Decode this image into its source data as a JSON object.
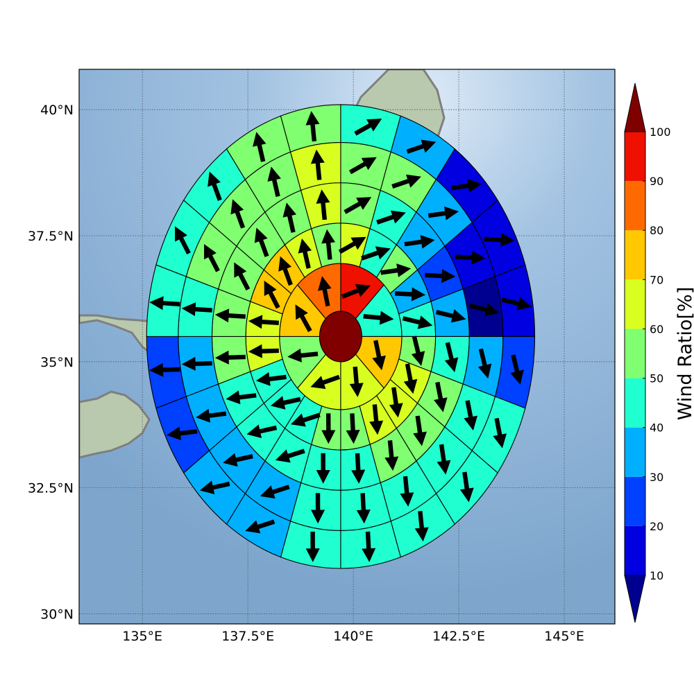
{
  "map": {
    "lat_ticks": [
      {
        "label": "40°N",
        "value": 40
      },
      {
        "label": "37.5°N",
        "value": 37.5
      },
      {
        "label": "35°N",
        "value": 35
      },
      {
        "label": "32.5°N",
        "value": 32.5
      },
      {
        "label": "30°N",
        "value": 30
      }
    ],
    "lon_ticks": [
      {
        "label": "135°E",
        "value": 135
      },
      {
        "label": "137.5°E",
        "value": 137.5
      },
      {
        "label": "140°E",
        "value": 140
      },
      {
        "label": "142.5°E",
        "value": 142.5
      },
      {
        "label": "145°E",
        "value": 145
      }
    ],
    "extent": {
      "lon": [
        133.5,
        146.2
      ],
      "lat": [
        29.8,
        40.8
      ]
    },
    "sea_color": "#8fb3d6",
    "land_color": "#b8c9ad",
    "coast_color": "#7f7f7f",
    "grid": true
  },
  "chart_data": {
    "type": "polar_sector_map",
    "center": {
      "lon": 139.7,
      "lat": 35.5
    },
    "ring_radii_deg": [
      0.5,
      1.45,
      2.25,
      3.05,
      3.85,
      4.6
    ],
    "center_value": 100,
    "rings": [
      {
        "values": [
          95,
          42,
          75,
          62,
          62,
          55,
          70,
          82
        ]
      },
      {
        "values": [
          62,
          45,
          55,
          35,
          45,
          55,
          65,
          65,
          62,
          58,
          55,
          45,
          48,
          45,
          62,
          65,
          72,
          72,
          62,
          55
        ]
      },
      {
        "values": [
          52,
          42,
          35,
          28,
          38,
          48,
          52,
          52,
          52,
          48,
          45,
          45,
          48,
          48,
          52,
          50,
          50,
          55,
          55,
          62
        ]
      },
      {
        "values": [
          52,
          52,
          35,
          18,
          8,
          38,
          42,
          45,
          45,
          45,
          42,
          38,
          38,
          38,
          38,
          48,
          52,
          52,
          52,
          60
        ]
      },
      {
        "values": [
          48,
          32,
          12,
          12,
          18,
          22,
          42,
          45,
          45,
          45,
          42,
          38,
          38,
          28,
          25,
          48,
          48,
          48,
          52,
          52
        ]
      }
    ],
    "colorbar": {
      "label": "Wind Ratio[%]",
      "ticks": [
        "10",
        "20",
        "30",
        "40",
        "50",
        "60",
        "70",
        "80",
        "90",
        "100"
      ],
      "colors": [
        "#0000e0",
        "#0040ff",
        "#00b0ff",
        "#20ffd0",
        "#80ff70",
        "#d8ff20",
        "#ffc800",
        "#ff6a00",
        "#f01000"
      ],
      "under_color": "#000090",
      "over_color": "#800000"
    }
  }
}
